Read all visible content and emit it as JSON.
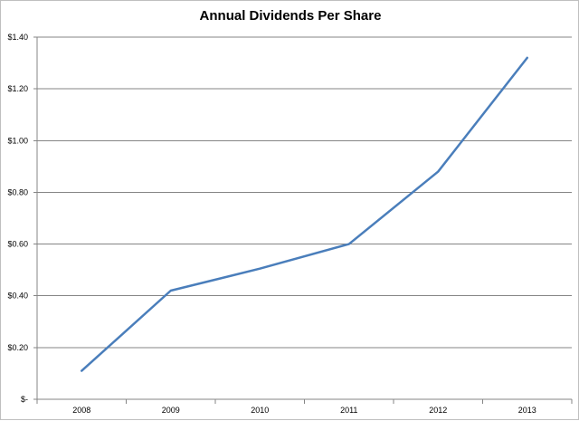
{
  "chart_data": {
    "type": "line",
    "title": "Annual Dividends Per Share",
    "xlabel": "",
    "ylabel": "",
    "categories": [
      "2008",
      "2009",
      "2010",
      "2011",
      "2012",
      "2013"
    ],
    "series": [
      {
        "values": [
          0.11,
          0.42,
          0.505,
          0.6,
          0.88,
          1.32
        ]
      }
    ],
    "ylim": [
      0,
      1.4
    ],
    "y_ticks": [
      0,
      0.2,
      0.4,
      0.6,
      0.8,
      1.0,
      1.2,
      1.4
    ],
    "y_tick_labels": [
      "$-",
      "$0.20",
      "$0.40",
      "$0.60",
      "$0.80",
      "$1.00",
      "$1.20",
      "$1.40"
    ],
    "grid": true,
    "legend": "none",
    "colors": {
      "line": "#4a7ebb",
      "grid": "#858585",
      "axis": "#858585"
    }
  }
}
